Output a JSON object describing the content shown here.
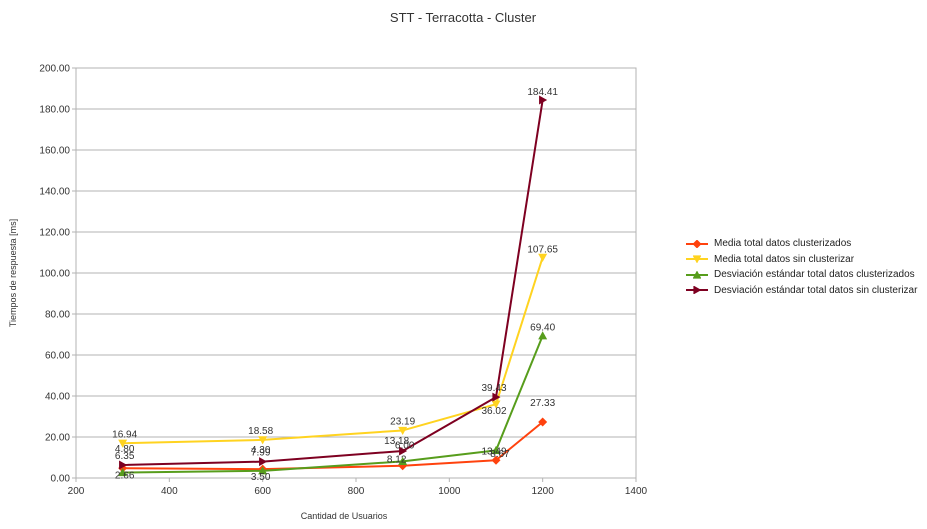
{
  "chart_data": {
    "type": "line",
    "title": "STT - Terracotta - Cluster",
    "xlabel": "Cantidad de Usuarios",
    "ylabel": "Tiempos de respuesta [ms]",
    "xlim": [
      200,
      1400
    ],
    "ylim": [
      0,
      200
    ],
    "x_ticks": [
      "200",
      "400",
      "600",
      "800",
      "1000",
      "1200",
      "1400"
    ],
    "y_ticks": [
      "0.00",
      "20.00",
      "40.00",
      "60.00",
      "80.00",
      "100.00",
      "120.00",
      "140.00",
      "160.00",
      "180.00",
      "200.00"
    ],
    "grid": true,
    "legend_position": "right",
    "x": [
      300,
      600,
      900,
      1100,
      1200
    ],
    "series": [
      {
        "name": "Media total datos clusterizados",
        "color": "#ff420e",
        "marker": "diamond",
        "values": [
          4.8,
          4.3,
          6.0,
          8.67,
          27.33
        ],
        "labels": [
          "4.80",
          "4.30",
          "6.00",
          "8.67",
          "27.33"
        ]
      },
      {
        "name": "Media total datos sin clusterizar",
        "color": "#ffd320",
        "marker": "triangle-down",
        "values": [
          16.94,
          18.58,
          23.19,
          36.02,
          107.65
        ],
        "labels": [
          "16.94",
          "18.58",
          "23.19",
          "36.02",
          "107.65"
        ]
      },
      {
        "name": "Desviación estándar total datos clusterizados",
        "color": "#579d1c",
        "marker": "triangle-up",
        "values": [
          2.66,
          3.5,
          8.12,
          13.49,
          69.4
        ],
        "labels": [
          "2.66",
          "3.50",
          "8.12",
          "13.49",
          "69.40"
        ]
      },
      {
        "name": "Desviación estándar total datos sin clusterizar",
        "color": "#7e0021",
        "marker": "triangle-right",
        "values": [
          6.35,
          7.99,
          13.18,
          39.43,
          184.41
        ],
        "labels": [
          "6.35",
          "7.99",
          "13.18",
          "39.43",
          "184.41"
        ]
      }
    ]
  }
}
